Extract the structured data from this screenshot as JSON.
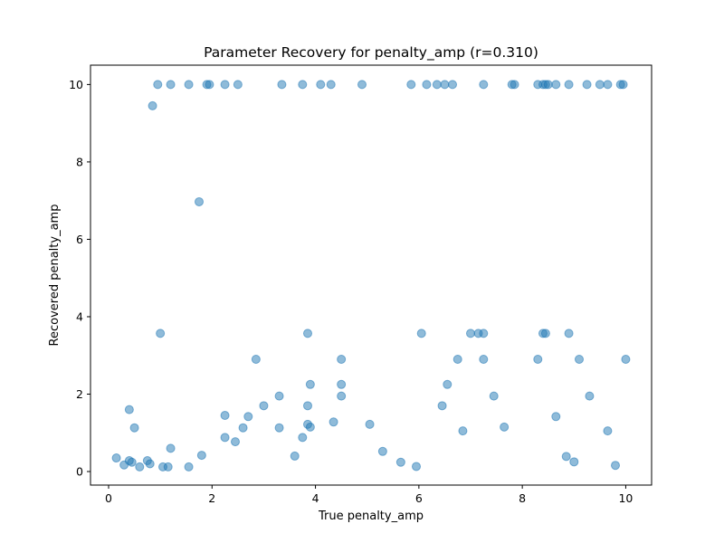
{
  "chart_data": {
    "type": "scatter",
    "title": "Parameter Recovery for penalty_amp (r=0.310)",
    "xlabel": "True penalty_amp",
    "ylabel": "Recovered penalty_amp",
    "xlim": [
      -0.35,
      10.5
    ],
    "ylim": [
      -0.35,
      10.5
    ],
    "xticks": [
      0,
      2,
      4,
      6,
      8,
      10
    ],
    "yticks": [
      0,
      2,
      4,
      6,
      8,
      10
    ],
    "xtick_labels": [
      "0",
      "2",
      "4",
      "6",
      "8",
      "10"
    ],
    "ytick_labels": [
      "0",
      "2",
      "4",
      "6",
      "8",
      "10"
    ],
    "grid": false,
    "color": "#1f77b4",
    "alpha": 0.5,
    "points": [
      [
        0.95,
        10.0
      ],
      [
        1.2,
        10.0
      ],
      [
        1.55,
        10.0
      ],
      [
        1.9,
        10.0
      ],
      [
        1.95,
        10.0
      ],
      [
        2.25,
        10.0
      ],
      [
        2.5,
        10.0
      ],
      [
        3.35,
        10.0
      ],
      [
        3.75,
        10.0
      ],
      [
        4.1,
        10.0
      ],
      [
        4.3,
        10.0
      ],
      [
        4.9,
        10.0
      ],
      [
        5.85,
        10.0
      ],
      [
        6.15,
        10.0
      ],
      [
        6.35,
        10.0
      ],
      [
        6.5,
        10.0
      ],
      [
        6.65,
        10.0
      ],
      [
        7.25,
        10.0
      ],
      [
        7.8,
        10.0
      ],
      [
        7.85,
        10.0
      ],
      [
        8.3,
        10.0
      ],
      [
        8.4,
        10.0
      ],
      [
        8.45,
        10.0
      ],
      [
        8.5,
        10.0
      ],
      [
        8.65,
        10.0
      ],
      [
        8.9,
        10.0
      ],
      [
        9.25,
        10.0
      ],
      [
        9.5,
        10.0
      ],
      [
        9.65,
        10.0
      ],
      [
        9.9,
        10.0
      ],
      [
        9.95,
        10.0
      ],
      [
        0.85,
        9.45
      ],
      [
        1.75,
        6.97
      ],
      [
        1.0,
        3.57
      ],
      [
        3.85,
        3.57
      ],
      [
        6.05,
        3.57
      ],
      [
        7.0,
        3.57
      ],
      [
        7.15,
        3.57
      ],
      [
        7.25,
        3.57
      ],
      [
        8.4,
        3.57
      ],
      [
        8.45,
        3.57
      ],
      [
        8.9,
        3.57
      ],
      [
        2.85,
        2.9
      ],
      [
        4.5,
        2.9
      ],
      [
        6.75,
        2.9
      ],
      [
        7.25,
        2.9
      ],
      [
        8.3,
        2.9
      ],
      [
        9.1,
        2.9
      ],
      [
        10.0,
        2.9
      ],
      [
        3.9,
        2.25
      ],
      [
        4.5,
        2.25
      ],
      [
        6.55,
        2.25
      ],
      [
        3.3,
        1.95
      ],
      [
        4.5,
        1.95
      ],
      [
        7.45,
        1.95
      ],
      [
        9.3,
        1.95
      ],
      [
        0.4,
        1.6
      ],
      [
        3.0,
        1.7
      ],
      [
        3.85,
        1.7
      ],
      [
        6.45,
        1.7
      ],
      [
        2.25,
        1.45
      ],
      [
        2.7,
        1.42
      ],
      [
        8.65,
        1.42
      ],
      [
        4.35,
        1.28
      ],
      [
        3.85,
        1.22
      ],
      [
        5.05,
        1.22
      ],
      [
        3.9,
        1.15
      ],
      [
        0.5,
        1.13
      ],
      [
        2.6,
        1.13
      ],
      [
        3.3,
        1.13
      ],
      [
        7.65,
        1.15
      ],
      [
        6.85,
        1.05
      ],
      [
        9.65,
        1.05
      ],
      [
        3.75,
        0.88
      ],
      [
        2.25,
        0.88
      ],
      [
        2.45,
        0.77
      ],
      [
        1.2,
        0.6
      ],
      [
        5.3,
        0.52
      ],
      [
        1.8,
        0.42
      ],
      [
        3.6,
        0.4
      ],
      [
        8.85,
        0.39
      ],
      [
        0.15,
        0.35
      ],
      [
        0.4,
        0.28
      ],
      [
        0.75,
        0.28
      ],
      [
        0.45,
        0.24
      ],
      [
        5.65,
        0.24
      ],
      [
        9.0,
        0.25
      ],
      [
        0.3,
        0.17
      ],
      [
        0.8,
        0.2
      ],
      [
        0.6,
        0.12
      ],
      [
        1.05,
        0.12
      ],
      [
        1.15,
        0.12
      ],
      [
        1.55,
        0.12
      ],
      [
        5.95,
        0.13
      ],
      [
        9.8,
        0.16
      ]
    ]
  }
}
